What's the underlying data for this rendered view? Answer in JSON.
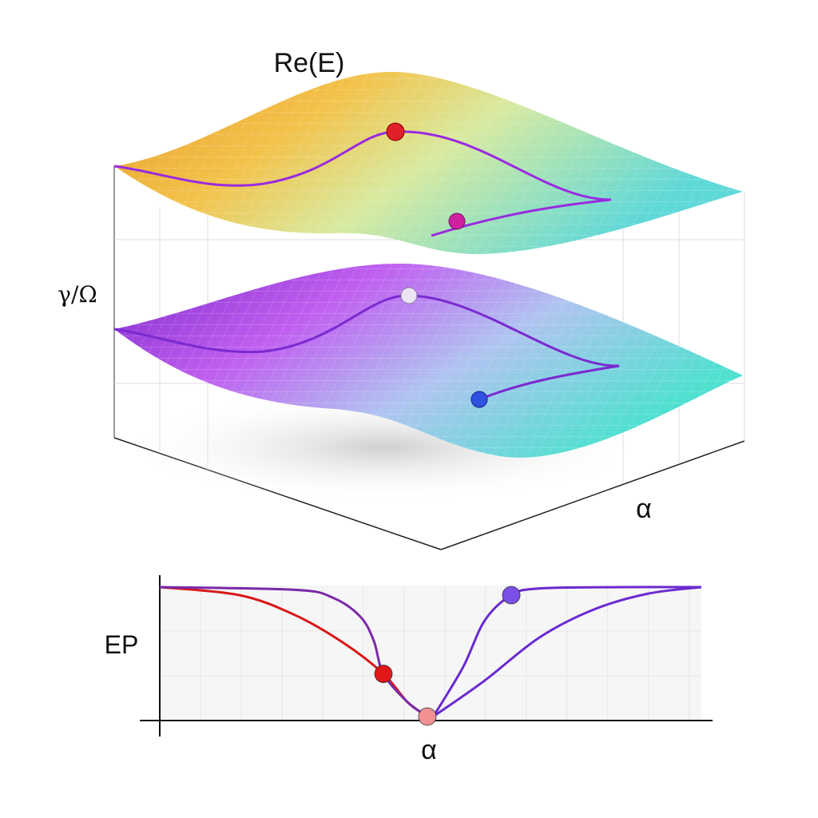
{
  "surface_plot": {
    "title": "Re(E)",
    "ylabel": "γ/Ω",
    "xlabel": "α",
    "upper_surface_colors": [
      "#f0a020",
      "#f7d860",
      "#cfeea0",
      "#6fe0d8"
    ],
    "lower_surface_colors": [
      "#8a2fd0",
      "#c060f0",
      "#b8c8f0",
      "#5fe0d8"
    ],
    "markers": [
      {
        "surface": "upper",
        "color": "#e0202a"
      },
      {
        "surface": "upper",
        "color": "#d020a0"
      },
      {
        "surface": "lower",
        "color": "#e8e0f0"
      },
      {
        "surface": "lower",
        "color": "#3050e0"
      }
    ],
    "path_color": "#8a2be2"
  },
  "chart_data": {
    "type": "line",
    "title": "",
    "xlabel": "α",
    "ylabel": "EP",
    "grid": true,
    "xlim": [
      0,
      10
    ],
    "ylim": [
      0,
      1
    ],
    "series": [
      {
        "color": "#d81818",
        "x": [
          0,
          1.47,
          2.5,
          3.4,
          4.13,
          4.57,
          4.94
        ],
        "y": [
          1,
          0.94,
          0.79,
          0.58,
          0.35,
          0.14,
          0.03
        ]
      },
      {
        "color": "#7a2aa8",
        "x": [
          0,
          2.5,
          3.2,
          3.7,
          3.95,
          4.13,
          4.57,
          4.94
        ],
        "y": [
          1,
          0.98,
          0.92,
          0.78,
          0.6,
          0.35,
          0.14,
          0.03
        ]
      },
      {
        "color": "#6a2ad0",
        "x": [
          5.05,
          5.6,
          6.0,
          6.49,
          7,
          8.5,
          10
        ],
        "y": [
          0.03,
          0.4,
          0.75,
          0.94,
          0.99,
          1,
          1
        ]
      },
      {
        "color": "#6a2ad0",
        "x": [
          5.05,
          6,
          7,
          8,
          9,
          10
        ],
        "y": [
          0.03,
          0.3,
          0.62,
          0.83,
          0.95,
          1
        ]
      }
    ],
    "markers": [
      {
        "x": 4.13,
        "y": 0.35,
        "color": "#e01818"
      },
      {
        "x": 4.94,
        "y": 0.03,
        "color": "#f09090"
      },
      {
        "x": 6.49,
        "y": 0.94,
        "color": "#7a50e8"
      }
    ]
  }
}
